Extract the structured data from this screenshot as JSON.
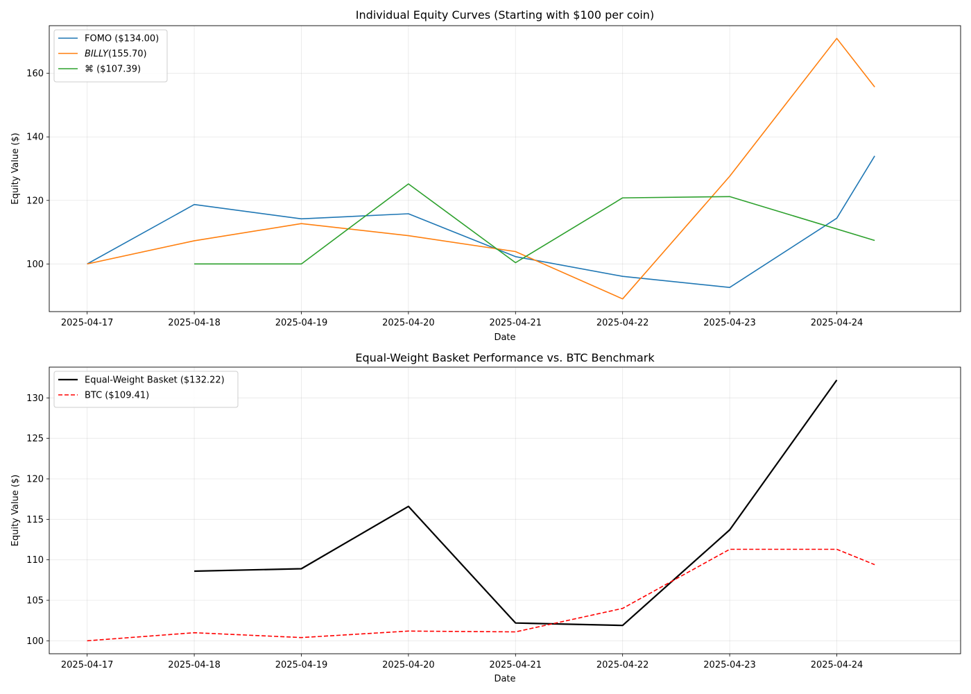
{
  "chart_data": [
    {
      "type": "line",
      "title": "Individual Equity Curves (Starting with $100 per coin)",
      "xlabel": "Date",
      "ylabel": "Equity Value ($)",
      "x_ticks": [
        "2025-04-17",
        "2025-04-18",
        "2025-04-19",
        "2025-04-20",
        "2025-04-21",
        "2025-04-22",
        "2025-04-23",
        "2025-04-24"
      ],
      "xlim": [
        "2025-04-16 15:30",
        "2025-04-25 03:45"
      ],
      "ylim": [
        85,
        175
      ],
      "y_ticks": [
        100,
        120,
        140,
        160
      ],
      "grid": true,
      "legend_position": "upper-left",
      "series": [
        {
          "name": "FOMO ($134.00)",
          "color": "#1f77b4",
          "style": "solid",
          "x": [
            "2025-04-17",
            "2025-04-18",
            "2025-04-19",
            "2025-04-20",
            "2025-04-21",
            "2025-04-22",
            "2025-04-23",
            "2025-04-24",
            "2025-04-24 08:30"
          ],
          "values": [
            100,
            118.7,
            114.2,
            115.8,
            102.3,
            96.1,
            92.6,
            114.4,
            134.0
          ]
        },
        {
          "name": "BILLY(155.70)",
          "italic_prefix": "BILLY",
          "color": "#ff7f0e",
          "style": "solid",
          "x": [
            "2025-04-17",
            "2025-04-18",
            "2025-04-19",
            "2025-04-20",
            "2025-04-21",
            "2025-04-22",
            "2025-04-23",
            "2025-04-24",
            "2025-04-24 08:30"
          ],
          "values": [
            100,
            107.3,
            112.7,
            108.9,
            103.9,
            89.0,
            127.6,
            171.0,
            155.7
          ]
        },
        {
          "name": "⌘ ($107.39)",
          "color": "#2ca02c",
          "style": "solid",
          "x": [
            "2025-04-18",
            "2025-04-19",
            "2025-04-20",
            "2025-04-21",
            "2025-04-22",
            "2025-04-23",
            "2025-04-24 08:30"
          ],
          "values": [
            100,
            100,
            125.2,
            100.4,
            120.8,
            121.2,
            107.4
          ]
        }
      ]
    },
    {
      "type": "line",
      "title": "Equal-Weight Basket Performance vs. BTC Benchmark",
      "xlabel": "Date",
      "ylabel": "Equity Value ($)",
      "x_ticks": [
        "2025-04-17",
        "2025-04-18",
        "2025-04-19",
        "2025-04-20",
        "2025-04-21",
        "2025-04-22",
        "2025-04-23",
        "2025-04-24"
      ],
      "xlim": [
        "2025-04-16 15:30",
        "2025-04-25 03:45"
      ],
      "ylim": [
        98.4,
        133.8
      ],
      "y_ticks": [
        100,
        105,
        110,
        115,
        120,
        125,
        130
      ],
      "grid": true,
      "legend_position": "upper-left",
      "series": [
        {
          "name": "Equal-Weight Basket ($132.22)",
          "color": "#000000",
          "style": "solid",
          "width": "bold",
          "x": [
            "2025-04-18",
            "2025-04-19",
            "2025-04-20",
            "2025-04-21",
            "2025-04-22",
            "2025-04-23",
            "2025-04-24"
          ],
          "values": [
            108.6,
            108.9,
            116.6,
            102.2,
            101.9,
            113.7,
            132.2
          ]
        },
        {
          "name": "BTC ($109.41)",
          "color": "#ff0000",
          "style": "dashed",
          "x": [
            "2025-04-17",
            "2025-04-18",
            "2025-04-19",
            "2025-04-20",
            "2025-04-21",
            "2025-04-22",
            "2025-04-23",
            "2025-04-24",
            "2025-04-24 08:30"
          ],
          "values": [
            100.0,
            101.0,
            100.4,
            101.2,
            101.1,
            104.0,
            111.3,
            111.3,
            109.4
          ]
        }
      ]
    }
  ]
}
